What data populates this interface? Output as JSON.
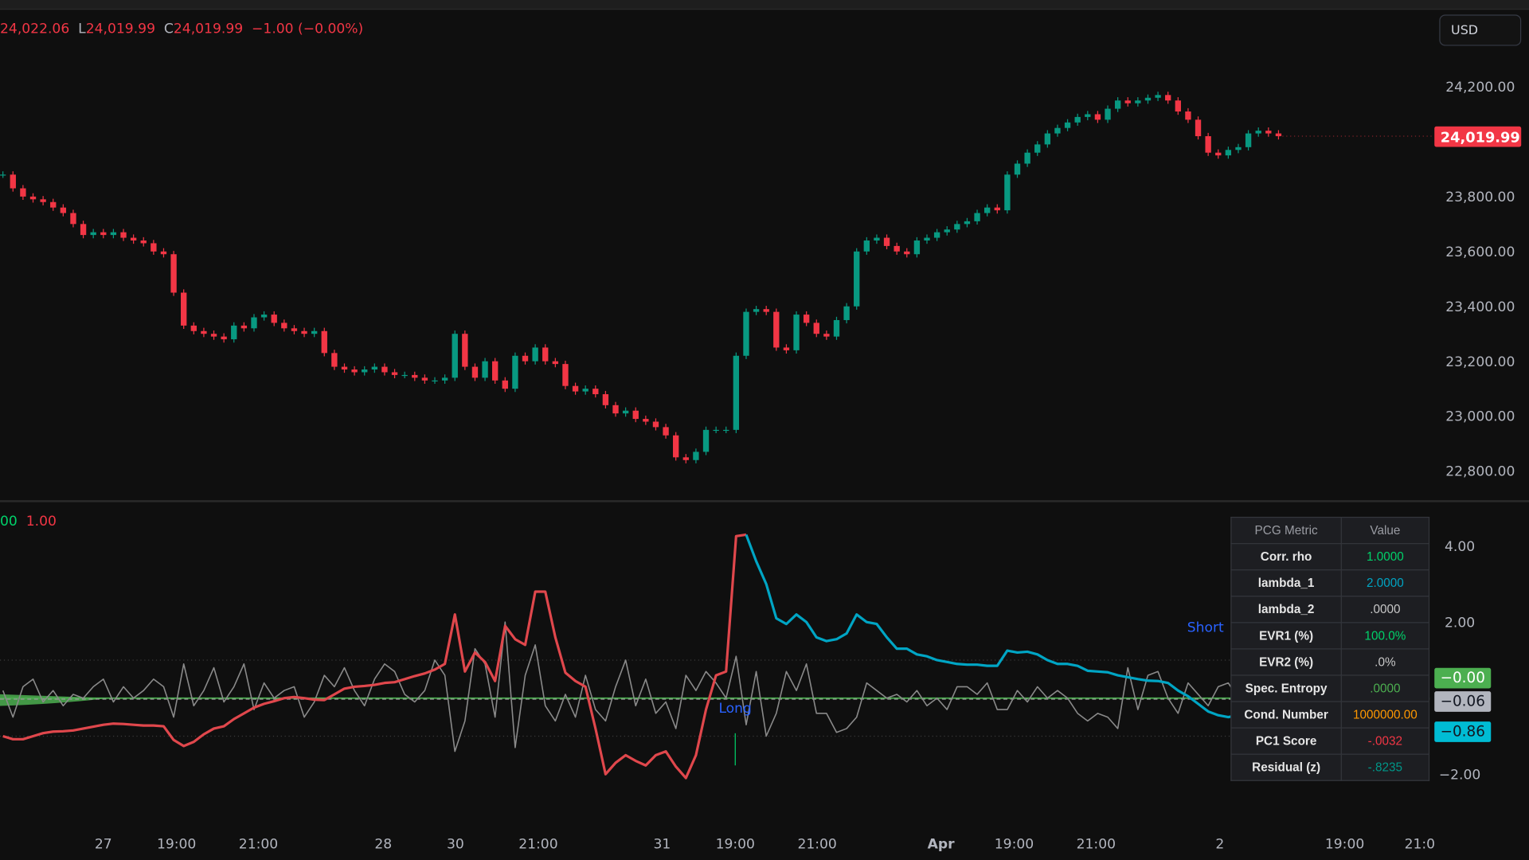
{
  "ohlc_legend": {
    "high": "24,022.06",
    "low_label": "L",
    "low": "24,019.99",
    "close_label": "C",
    "close": "24,019.99",
    "change": "−1.00 (−0.00%)"
  },
  "currency_button": "USD",
  "price_axis": {
    "ticks": [
      "24,200.00",
      "23,800.00",
      "23,600.00",
      "23,400.00",
      "23,200.00",
      "23,000.00",
      "22,800.00"
    ],
    "tick_values": [
      24200,
      23800,
      23600,
      23400,
      23200,
      23000,
      22800
    ],
    "last_price_label": "24,019.99",
    "last_price_color": "#f23645"
  },
  "oscillator_axis": {
    "ticks": [
      "4.00",
      "2.00",
      "−2.00"
    ],
    "tick_values": [
      4,
      2,
      -2
    ],
    "guide_levels": [
      1,
      -1
    ]
  },
  "oscillator_legend": {
    "green_value": "00",
    "red_value": "1.00"
  },
  "badges": [
    {
      "label": "−0.00",
      "value": 0,
      "bg": "#4caf50",
      "fg": "#ffffff"
    },
    {
      "label": "−0.06",
      "value": -0.06,
      "bg": "#b2b5be",
      "fg": "#131722"
    },
    {
      "label": "−0.86",
      "value": -0.86,
      "bg": "#00bcd4",
      "fg": "#131722"
    }
  ],
  "signals": {
    "long": "Long",
    "short": "Short"
  },
  "time_axis": [
    "27",
    "19:00",
    "21:00",
    "28",
    "30",
    "21:00",
    "31",
    "19:00",
    "21:00",
    "Apr",
    "19:00",
    "21:00",
    "2",
    "19:00",
    "21:0"
  ],
  "colors": {
    "up": "#089981",
    "down": "#f23645",
    "red_line": "#e0474c",
    "cyan_line": "#00a5c4",
    "gray_line": "#8a8a8a",
    "zero_line": "#4caf50",
    "signal_blue": "#2962ff"
  },
  "table": {
    "headers": [
      "PCG Metric",
      "Value"
    ],
    "rows": [
      {
        "metric": "Corr. rho",
        "value": "1.0000",
        "color": "#00d26a"
      },
      {
        "metric": "lambda_1",
        "value": "2.0000",
        "color": "#00a5c4"
      },
      {
        "metric": "lambda_2",
        "value": ".0000",
        "color": "#c8c8c8"
      },
      {
        "metric": "EVR1 (%)",
        "value": "100.0%",
        "color": "#00d26a"
      },
      {
        "metric": "EVR2 (%)",
        "value": ".0%",
        "color": "#c8c8c8"
      },
      {
        "metric": "Spec. Entropy",
        "value": ".0000",
        "color": "#4caf50"
      },
      {
        "metric": "Cond. Number",
        "value": "1000000.00",
        "color": "#ff9800"
      },
      {
        "metric": "PC1 Score",
        "value": "-.0032",
        "color": "#f23645"
      },
      {
        "metric": "Residual (z)",
        "value": "-.8235",
        "color": "#009688"
      }
    ]
  },
  "chart_data": [
    {
      "type": "candlestick",
      "ylim": [
        22750,
        24300
      ],
      "closes": [
        23880,
        23830,
        23800,
        23790,
        23780,
        23760,
        23740,
        23700,
        23660,
        23670,
        23660,
        23670,
        23650,
        23640,
        23630,
        23600,
        23590,
        23450,
        23330,
        23310,
        23300,
        23290,
        23280,
        23330,
        23320,
        23360,
        23370,
        23340,
        23320,
        23310,
        23300,
        23310,
        23230,
        23180,
        23170,
        23160,
        23170,
        23180,
        23160,
        23150,
        23150,
        23140,
        23130,
        23130,
        23140,
        23300,
        23180,
        23140,
        23200,
        23130,
        23100,
        23220,
        23200,
        23250,
        23200,
        23190,
        23110,
        23090,
        23100,
        23080,
        23040,
        23010,
        23020,
        22990,
        22980,
        22960,
        22930,
        22850,
        22840,
        22870,
        22950,
        22950,
        22950,
        23220,
        23380,
        23390,
        23380,
        23250,
        23240,
        23370,
        23340,
        23300,
        23290,
        23350,
        23400,
        23600,
        23640,
        23650,
        23620,
        23600,
        23590,
        23640,
        23650,
        23670,
        23680,
        23700,
        23710,
        23740,
        23760,
        23750,
        23880,
        23920,
        23960,
        23990,
        24030,
        24050,
        24070,
        24090,
        24100,
        24080,
        24120,
        24150,
        24140,
        24150,
        24160,
        24170,
        24150,
        24110,
        24080,
        24020,
        23960,
        23950,
        23970,
        23980,
        24030,
        24040,
        24030,
        24019.99
      ]
    },
    {
      "type": "line",
      "ylim": [
        -2.8,
        4.6
      ],
      "series": [
        {
          "color": "#e0474c",
          "values": [
            -1.0,
            -1.08,
            -1.08,
            -1.0,
            -0.92,
            -0.88,
            -0.87,
            -0.85,
            -0.8,
            -0.75,
            -0.7,
            -0.67,
            -0.68,
            -0.7,
            -0.72,
            -0.72,
            -0.74,
            -1.1,
            -1.26,
            -1.15,
            -0.95,
            -0.8,
            -0.74,
            -0.55,
            -0.4,
            -0.25,
            -0.15,
            -0.08,
            0.0,
            0.03,
            0.0,
            -0.04,
            -0.05,
            0.1,
            0.25,
            0.3,
            0.32,
            0.35,
            0.4,
            0.42,
            0.5,
            0.58,
            0.65,
            0.75,
            0.9,
            2.2,
            0.7,
            1.2,
            0.95,
            0.45,
            1.9,
            1.55,
            1.4,
            2.8,
            2.8,
            1.6,
            0.67,
            0.45,
            0.3,
            -0.8,
            -2.0,
            -1.7,
            -1.5,
            -1.65,
            -1.77,
            -1.5,
            -1.4,
            -1.8,
            -2.1,
            -1.5,
            -0.3,
            0.6,
            0.7,
            4.26,
            4.3
          ]
        },
        {
          "color": "#00a5c4",
          "start_index": 74,
          "values": [
            4.3,
            3.6,
            3.0,
            2.1,
            1.95,
            2.2,
            2.0,
            1.6,
            1.5,
            1.55,
            1.7,
            2.2,
            2.0,
            1.95,
            1.6,
            1.3,
            1.3,
            1.15,
            1.1,
            1.0,
            0.95,
            0.9,
            0.88,
            0.88,
            0.85,
            0.85,
            1.25,
            1.2,
            1.22,
            1.15,
            1.0,
            0.9,
            0.9,
            0.85,
            0.72,
            0.7,
            0.68,
            0.6,
            0.55,
            0.5,
            0.46,
            0.45,
            0.4,
            0.2,
            0.05,
            -0.15,
            -0.35,
            -0.45,
            -0.5,
            -0.45,
            -0.4,
            -0.55,
            -0.7,
            -0.86
          ]
        },
        {
          "color": "#8a8a8a",
          "values": [
            0.2,
            -0.5,
            0.3,
            0.5,
            -0.1,
            0.2,
            -0.2,
            0.1,
            0.0,
            0.3,
            0.5,
            -0.1,
            0.3,
            0.0,
            0.2,
            0.5,
            0.3,
            -0.5,
            0.9,
            -0.2,
            0.2,
            0.8,
            -0.1,
            0.3,
            0.9,
            -0.3,
            0.4,
            0.0,
            0.2,
            0.3,
            -0.5,
            -0.1,
            0.6,
            0.3,
            0.8,
            0.2,
            -0.2,
            0.5,
            0.9,
            0.7,
            0.1,
            -0.1,
            0.2,
            1.0,
            0.6,
            -1.4,
            -0.6,
            1.3,
            0.9,
            -0.5,
            2.0,
            -1.3,
            0.6,
            1.4,
            -0.2,
            -0.6,
            0.1,
            -0.5,
            0.6,
            -0.3,
            -0.6,
            0.3,
            1.0,
            -0.2,
            0.5,
            -0.4,
            -0.1,
            -0.8,
            0.6,
            0.2,
            0.7,
            0.4,
            0.0,
            1.1,
            -0.7,
            0.7,
            -1.0,
            -0.4,
            0.7,
            0.2,
            0.9,
            -0.4,
            -0.4,
            -0.9,
            -0.8,
            -0.5,
            0.4,
            0.2,
            0.0,
            0.1,
            -0.1,
            0.2,
            -0.2,
            0.0,
            -0.3,
            0.3,
            0.3,
            0.1,
            0.4,
            -0.3,
            -0.3,
            0.2,
            -0.1,
            0.3,
            0.0,
            0.2,
            0.0,
            -0.4,
            -0.6,
            -0.4,
            -0.5,
            -0.8,
            0.8,
            -0.3,
            0.6,
            0.7,
            0.0,
            -0.4,
            0.4,
            0.1,
            -0.2,
            0.3,
            0.4,
            0.0,
            -0.3,
            0.5,
            0.2,
            0.0
          ]
        },
        {
          "color": "#4caf50",
          "constant": 0
        }
      ]
    }
  ]
}
